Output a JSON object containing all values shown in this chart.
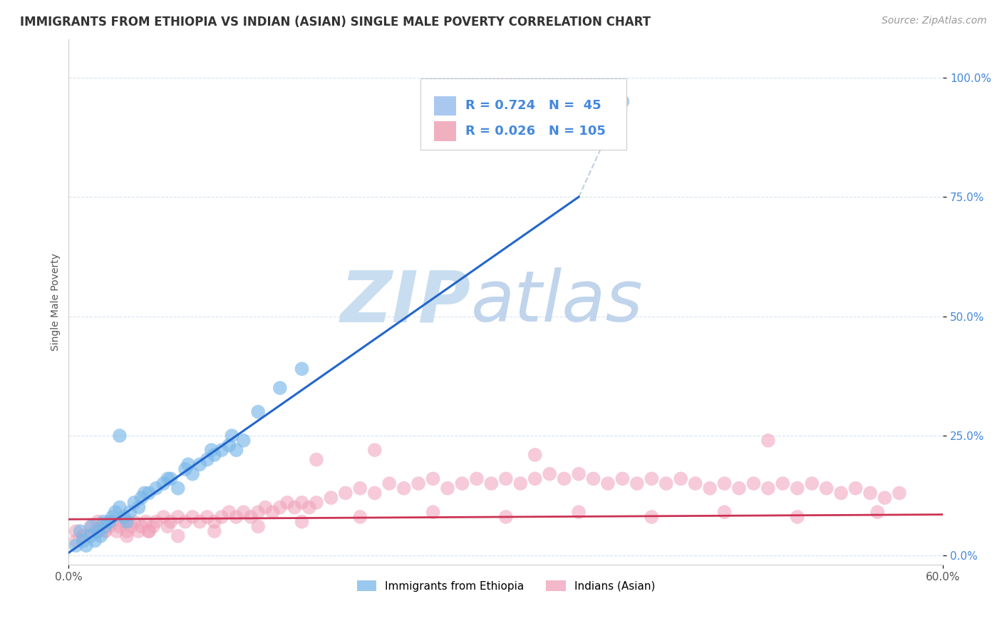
{
  "title": "IMMIGRANTS FROM ETHIOPIA VS INDIAN (ASIAN) SINGLE MALE POVERTY CORRELATION CHART",
  "source": "Source: ZipAtlas.com",
  "ylabel": "Single Male Poverty",
  "yticks_labels": [
    "0.0%",
    "25.0%",
    "50.0%",
    "75.0%",
    "100.0%"
  ],
  "ytick_vals": [
    0.0,
    0.25,
    0.5,
    0.75,
    1.0
  ],
  "xlim": [
    0.0,
    0.6
  ],
  "ylim": [
    -0.02,
    1.08
  ],
  "legend_entries": [
    {
      "label": "Immigrants from Ethiopia",
      "color": "#a8c8f0",
      "R": 0.724,
      "N": 45
    },
    {
      "label": "Indians (Asian)",
      "color": "#f0b0c0",
      "R": 0.026,
      "N": 105
    }
  ],
  "blue_scatter_x": [
    0.005,
    0.01,
    0.012,
    0.015,
    0.018,
    0.02,
    0.022,
    0.025,
    0.028,
    0.03,
    0.032,
    0.035,
    0.038,
    0.04,
    0.042,
    0.045,
    0.048,
    0.05,
    0.055,
    0.06,
    0.065,
    0.07,
    0.075,
    0.08,
    0.085,
    0.09,
    0.095,
    0.1,
    0.105,
    0.11,
    0.115,
    0.12,
    0.008,
    0.016,
    0.024,
    0.052,
    0.068,
    0.082,
    0.098,
    0.112,
    0.13,
    0.145,
    0.16,
    0.38,
    0.035
  ],
  "blue_scatter_y": [
    0.02,
    0.03,
    0.02,
    0.04,
    0.03,
    0.05,
    0.04,
    0.06,
    0.07,
    0.08,
    0.09,
    0.1,
    0.08,
    0.07,
    0.09,
    0.11,
    0.1,
    0.12,
    0.13,
    0.14,
    0.15,
    0.16,
    0.14,
    0.18,
    0.17,
    0.19,
    0.2,
    0.21,
    0.22,
    0.23,
    0.22,
    0.24,
    0.05,
    0.06,
    0.07,
    0.13,
    0.16,
    0.19,
    0.22,
    0.25,
    0.3,
    0.35,
    0.39,
    0.95,
    0.25
  ],
  "pink_scatter_x": [
    0.005,
    0.01,
    0.015,
    0.018,
    0.02,
    0.022,
    0.025,
    0.028,
    0.03,
    0.033,
    0.035,
    0.038,
    0.04,
    0.043,
    0.045,
    0.048,
    0.05,
    0.053,
    0.055,
    0.058,
    0.06,
    0.065,
    0.068,
    0.07,
    0.075,
    0.08,
    0.085,
    0.09,
    0.095,
    0.1,
    0.105,
    0.11,
    0.115,
    0.12,
    0.125,
    0.13,
    0.135,
    0.14,
    0.145,
    0.15,
    0.155,
    0.16,
    0.165,
    0.17,
    0.18,
    0.19,
    0.2,
    0.21,
    0.22,
    0.23,
    0.24,
    0.25,
    0.26,
    0.27,
    0.28,
    0.29,
    0.3,
    0.31,
    0.32,
    0.33,
    0.34,
    0.35,
    0.36,
    0.37,
    0.38,
    0.39,
    0.4,
    0.41,
    0.42,
    0.43,
    0.44,
    0.45,
    0.46,
    0.47,
    0.48,
    0.49,
    0.5,
    0.51,
    0.52,
    0.53,
    0.54,
    0.55,
    0.56,
    0.57,
    0.01,
    0.025,
    0.04,
    0.055,
    0.075,
    0.1,
    0.13,
    0.16,
    0.2,
    0.25,
    0.3,
    0.35,
    0.4,
    0.45,
    0.5,
    0.555,
    0.17,
    0.21,
    0.32,
    0.48,
    0.005
  ],
  "pink_scatter_y": [
    0.05,
    0.04,
    0.06,
    0.05,
    0.07,
    0.06,
    0.05,
    0.06,
    0.07,
    0.05,
    0.06,
    0.07,
    0.05,
    0.06,
    0.07,
    0.05,
    0.06,
    0.07,
    0.05,
    0.06,
    0.07,
    0.08,
    0.06,
    0.07,
    0.08,
    0.07,
    0.08,
    0.07,
    0.08,
    0.07,
    0.08,
    0.09,
    0.08,
    0.09,
    0.08,
    0.09,
    0.1,
    0.09,
    0.1,
    0.11,
    0.1,
    0.11,
    0.1,
    0.11,
    0.12,
    0.13,
    0.14,
    0.13,
    0.15,
    0.14,
    0.15,
    0.16,
    0.14,
    0.15,
    0.16,
    0.15,
    0.16,
    0.15,
    0.16,
    0.17,
    0.16,
    0.17,
    0.16,
    0.15,
    0.16,
    0.15,
    0.16,
    0.15,
    0.16,
    0.15,
    0.14,
    0.15,
    0.14,
    0.15,
    0.14,
    0.15,
    0.14,
    0.15,
    0.14,
    0.13,
    0.14,
    0.13,
    0.12,
    0.13,
    0.04,
    0.05,
    0.04,
    0.05,
    0.04,
    0.05,
    0.06,
    0.07,
    0.08,
    0.09,
    0.08,
    0.09,
    0.08,
    0.09,
    0.08,
    0.09,
    0.2,
    0.22,
    0.21,
    0.24,
    0.03
  ],
  "blue_line_x": [
    0.0,
    0.35
  ],
  "blue_line_y": [
    0.005,
    0.75
  ],
  "dashed_line_x": [
    0.35,
    0.38
  ],
  "dashed_line_y": [
    0.75,
    0.95
  ],
  "pink_line_x": [
    0.0,
    0.6
  ],
  "pink_line_y": [
    0.075,
    0.085
  ],
  "blue_scatter_color": "#7ab8e8",
  "pink_scatter_color": "#f0a0b8",
  "blue_line_color": "#2266cc",
  "pink_line_color": "#cc3355",
  "dashed_line_color": "#c0cfe0",
  "background_color": "#ffffff",
  "grid_color": "#d8e4f0",
  "title_fontsize": 12,
  "source_fontsize": 10,
  "axis_label_fontsize": 10,
  "tick_fontsize": 11,
  "legend_fontsize": 13
}
